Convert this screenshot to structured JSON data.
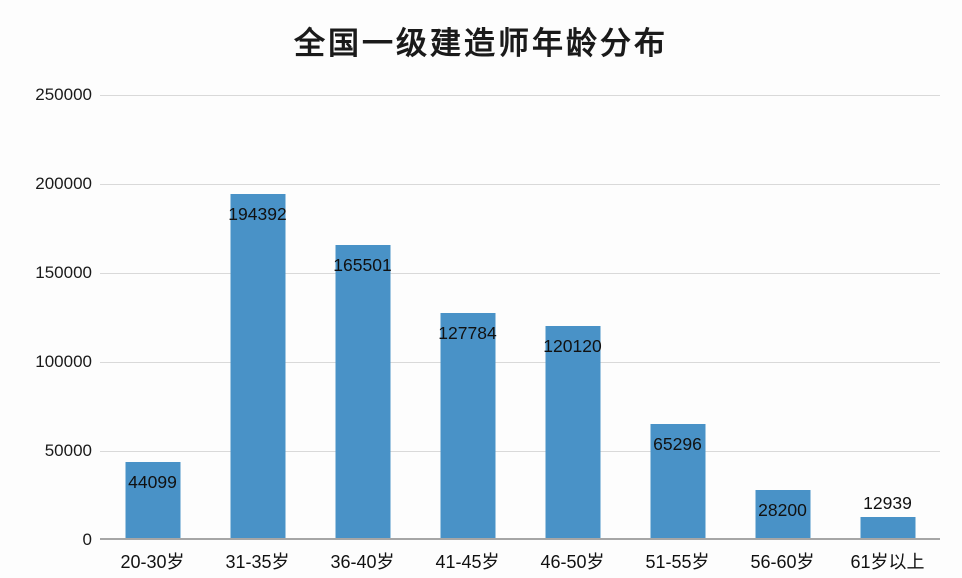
{
  "chart": {
    "bar_color": "#4992C7",
    "grid_color": "#d9d9d9",
    "axis_color": "#a6a6a6"
  },
  "chart_data": {
    "type": "bar",
    "title": "全国一级建造师年龄分布",
    "categories": [
      "20-30岁",
      "31-35岁",
      "36-40岁",
      "41-45岁",
      "46-50岁",
      "51-55岁",
      "56-60岁",
      "61岁以上"
    ],
    "values": [
      44099,
      194392,
      165501,
      127784,
      120120,
      65296,
      28200,
      12939
    ],
    "data_labels": [
      "44099",
      "194392",
      "165501",
      "127784",
      "120120",
      "65296",
      "28200",
      "12939"
    ],
    "xlabel": "",
    "ylabel": "",
    "ylim": [
      0,
      250000
    ],
    "yticks": [
      0,
      50000,
      100000,
      150000,
      200000,
      250000
    ],
    "ytick_labels": [
      "0",
      "50000",
      "100000",
      "150000",
      "200000",
      "250000"
    ],
    "grid": true,
    "legend": "none"
  }
}
